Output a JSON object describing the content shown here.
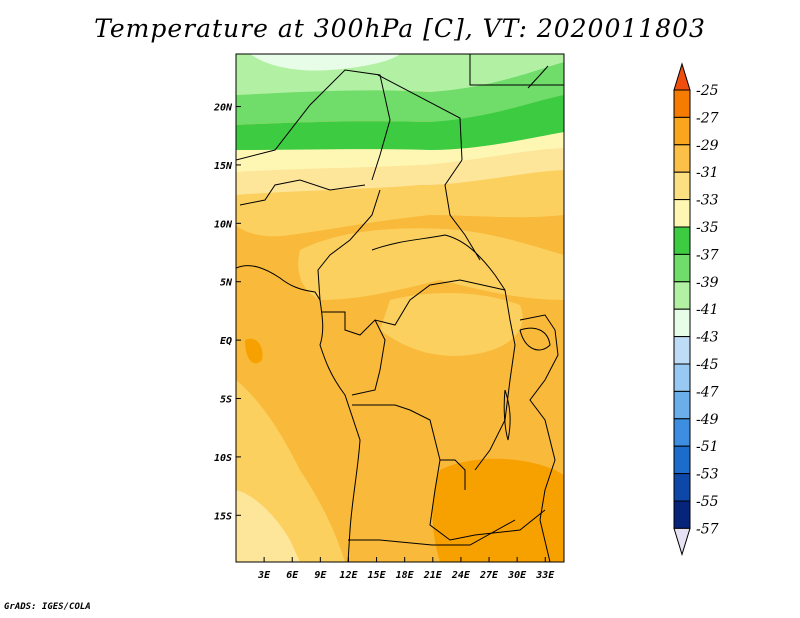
{
  "title": "Temperature at 300hPa [C], VT: 2020011803",
  "credit": "GrADS: IGES/COLA",
  "map": {
    "lat_ticks": [
      "20N",
      "15N",
      "10N",
      "5N",
      "EQ",
      "5S",
      "10S",
      "15S"
    ],
    "lon_ticks": [
      "3E",
      "6E",
      "9E",
      "12E",
      "15E",
      "18E",
      "21E",
      "24E",
      "27E",
      "30E",
      "33E"
    ],
    "lat_range": [
      -19,
      24.5
    ],
    "lon_range": [
      0,
      35
    ]
  },
  "colorbar": {
    "labels": [
      "-25",
      "-27",
      "-29",
      "-31",
      "-33",
      "-35",
      "-37",
      "-39",
      "-41",
      "-43",
      "-45",
      "-47",
      "-49",
      "-51",
      "-53",
      "-55",
      "-57"
    ],
    "colors": [
      "#f04e0f",
      "#f57c00",
      "#f9a51e",
      "#fcc049",
      "#fbdf80",
      "#fef7b3",
      "#3dcb42",
      "#70dc6a",
      "#b2f1a4",
      "#e8fde8",
      "#bfdcf7",
      "#97c9f2",
      "#6aaeea",
      "#3d8ee0",
      "#1c6ccc",
      "#0d48a8",
      "#06257a",
      "#0c0f5a"
    ],
    "top_color": "#f04e0f",
    "bottom_color": "#e6e2f4"
  },
  "colors": {
    "orange_dark": "#f7a100",
    "orange": "#f9b93a",
    "yellow_orange": "#fbd05e",
    "yellow": "#fde59a",
    "pale_yellow": "#fef7b3",
    "green_dark": "#3dcb42",
    "green": "#70dc6a",
    "green_light": "#b2f1a4",
    "cyan_pale": "#e8fde8"
  }
}
